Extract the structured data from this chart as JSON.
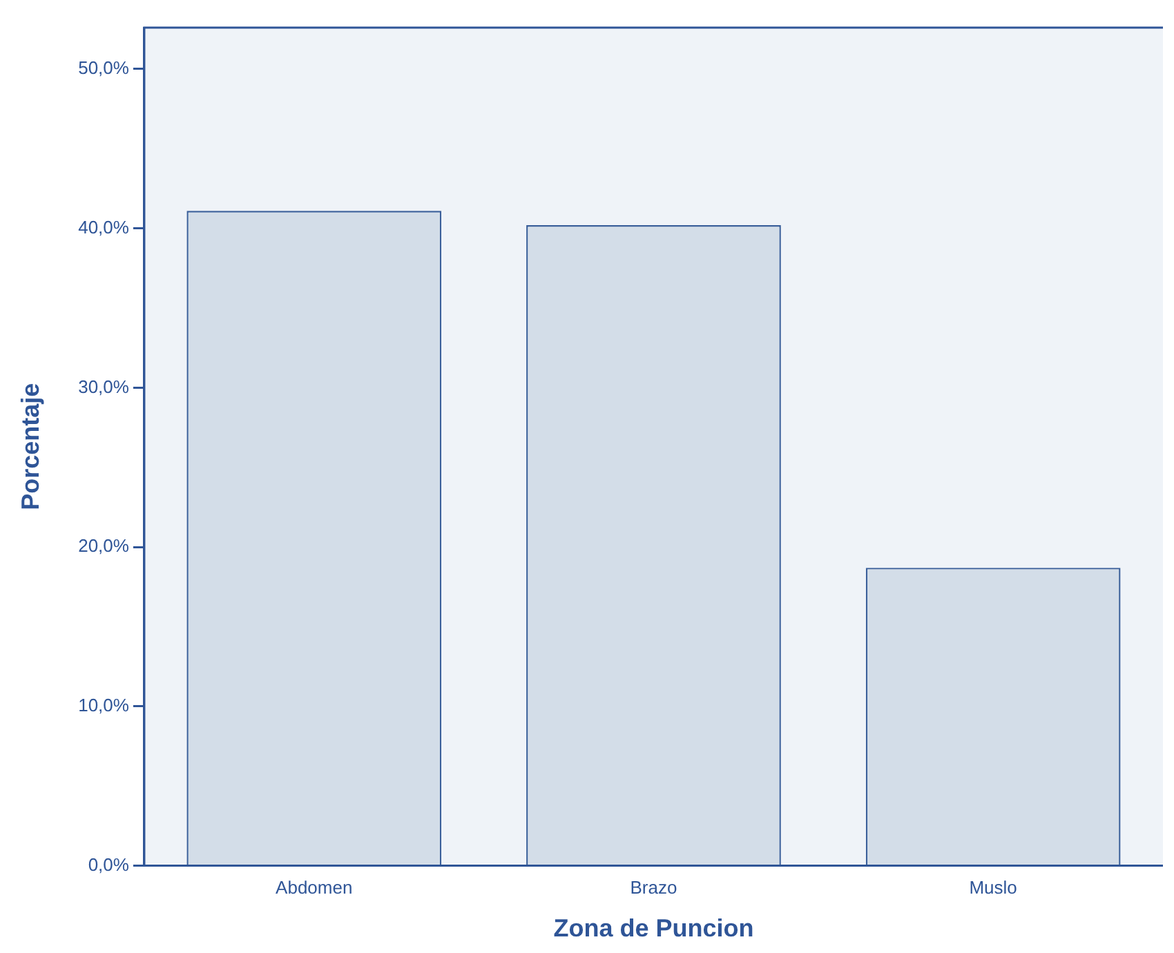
{
  "chart_data": {
    "type": "bar",
    "xlabel": "Zona de Puncion",
    "ylabel": "Porcentaje",
    "categories": [
      "Abdomen",
      "Brazo",
      "Muslo"
    ],
    "values": [
      41.1,
      40.2,
      18.7
    ],
    "color": "#d3dde8",
    "ylim": [
      0,
      52.6
    ],
    "yticks": [
      {
        "value": 0,
        "label": "0,0%"
      },
      {
        "value": 10,
        "label": "10,0%"
      },
      {
        "value": 20,
        "label": "20,0%"
      },
      {
        "value": 30,
        "label": "30,0%"
      },
      {
        "value": 40,
        "label": "40,0%"
      },
      {
        "value": 50,
        "label": "50,0%"
      }
    ],
    "legend": false
  }
}
